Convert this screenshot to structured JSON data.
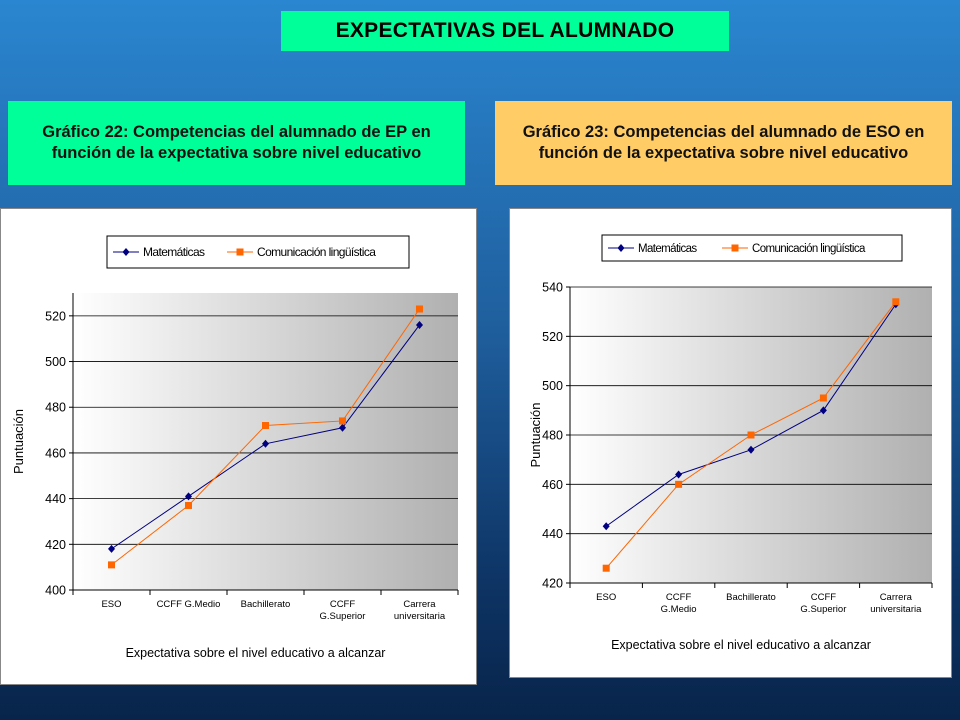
{
  "header": {
    "title": "EXPECTATIVAS DEL ALUMNADO"
  },
  "captions": {
    "left": "Gráfico 22: Competencias del alumnado de EP en función de la expectativa sobre nivel educativo",
    "right": "Gráfico 23: Competencias del alumnado de ESO en función de la expectativa sobre nivel educativo"
  },
  "colors": {
    "matematicas": "#000080",
    "comunicacion": "#ff6600"
  },
  "chart_data": [
    {
      "type": "line",
      "title": "",
      "xlabel": "Expectativa sobre el nivel educativo a alcanzar",
      "ylabel": "Puntuación",
      "ylim": [
        400,
        530
      ],
      "yticks": [
        400,
        420,
        440,
        460,
        480,
        500,
        520
      ],
      "grid": true,
      "legend": "top",
      "categories": [
        [
          "ESO"
        ],
        [
          "CCFF G.Medio"
        ],
        [
          "Bachillerato"
        ],
        [
          "CCFF",
          "G.Superior"
        ],
        [
          "Carrera",
          "universitaria"
        ]
      ],
      "series": [
        {
          "name": "Matemáticas",
          "values": [
            418,
            441,
            464,
            471,
            516
          ],
          "marker": "diamond",
          "color": "#000080"
        },
        {
          "name": "Comunicación lingüística",
          "values": [
            411,
            437,
            472,
            474,
            523
          ],
          "marker": "square",
          "color": "#ff6600"
        }
      ]
    },
    {
      "type": "line",
      "title": "",
      "xlabel": "Expectativa sobre el  nivel educativo a alcanzar",
      "ylabel": "Puntuación",
      "ylim": [
        420,
        540
      ],
      "yticks": [
        420,
        440,
        460,
        480,
        500,
        520,
        540
      ],
      "grid": true,
      "legend": "top",
      "categories": [
        [
          "ESO"
        ],
        [
          "CCFF",
          "G.Medio"
        ],
        [
          "Bachillerato"
        ],
        [
          "CCFF",
          "G.Superior"
        ],
        [
          "Carrera",
          "universitaria"
        ]
      ],
      "series": [
        {
          "name": "Matemáticas",
          "values": [
            443,
            464,
            474,
            490,
            533
          ],
          "marker": "diamond",
          "color": "#000080"
        },
        {
          "name": "Comunicación lingüística",
          "values": [
            426,
            460,
            480,
            495,
            534
          ],
          "marker": "square",
          "color": "#ff6600"
        }
      ]
    }
  ]
}
